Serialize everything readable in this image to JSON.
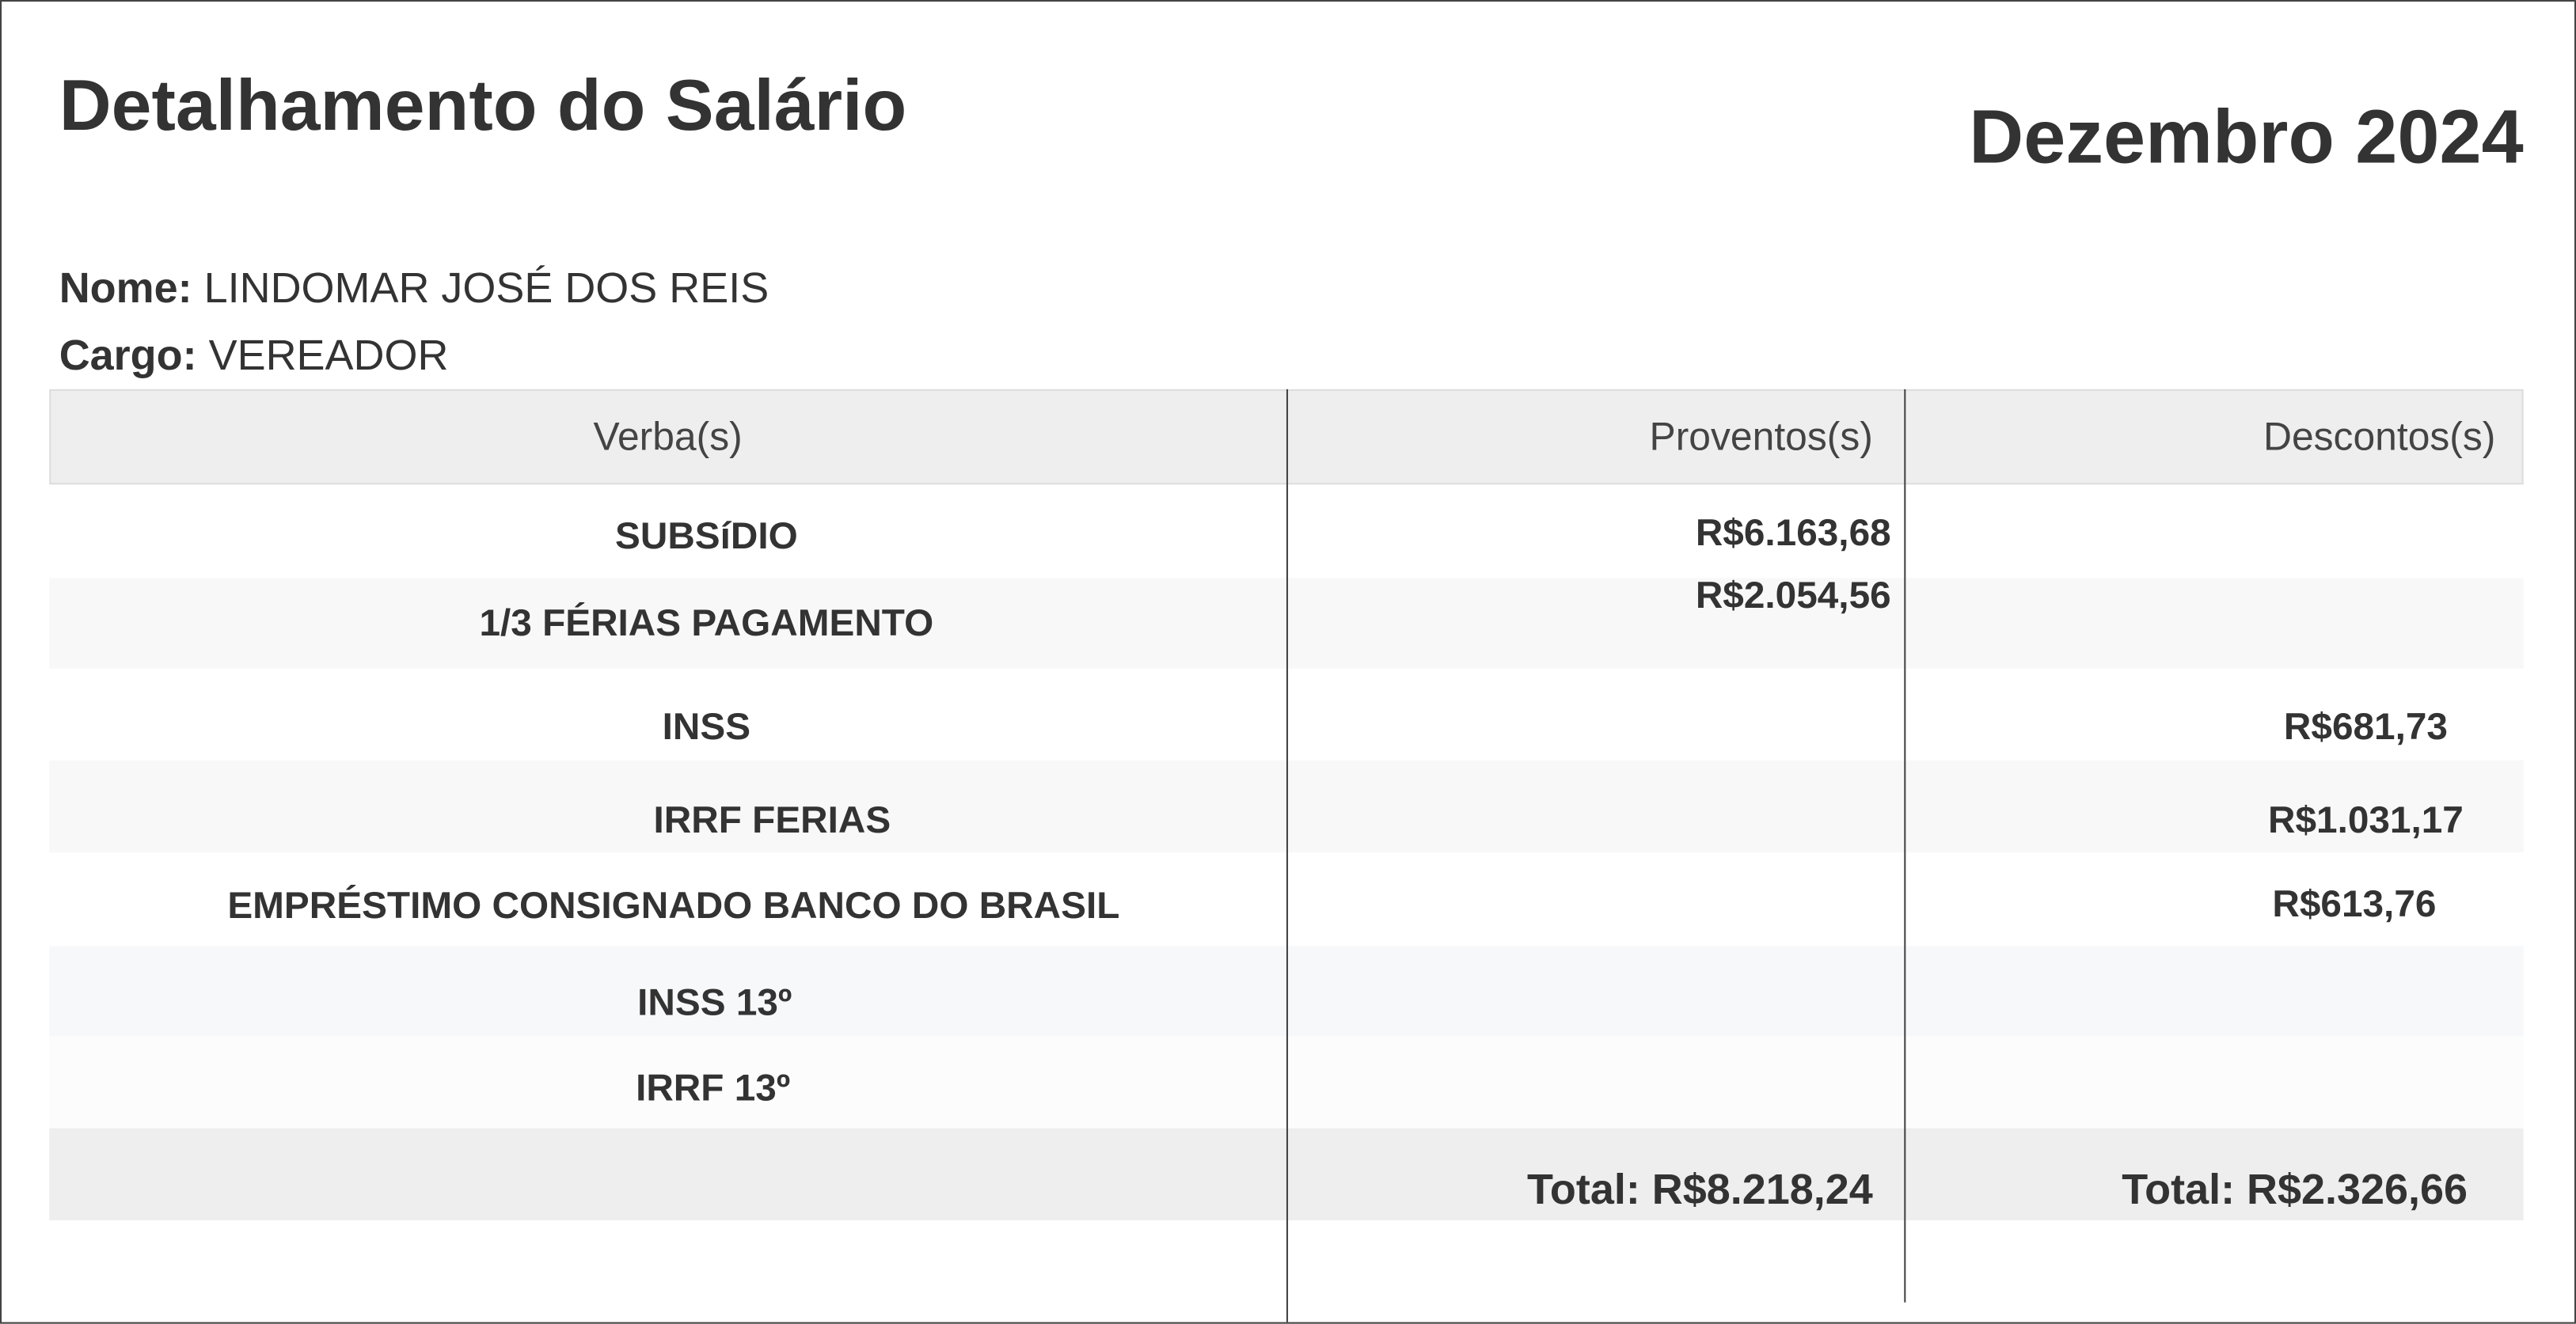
{
  "header": {
    "title": "Detalhamento do Salário",
    "period": "Dezembro 2024"
  },
  "employee": {
    "name_label": "Nome:",
    "name": "LINDOMAR JOSÉ DOS REIS",
    "role_label": "Cargo:",
    "role": "VEREADOR"
  },
  "table": {
    "columns": [
      "Verba(s)",
      "Proventos(s)",
      "Descontos(s)"
    ],
    "rows": [
      {
        "verba": "SUBSíDIO",
        "provento": "R$6.163,68",
        "desconto": ""
      },
      {
        "verba": "1/3 FÉRIAS PAGAMENTO",
        "provento": "R$2.054,56",
        "desconto": ""
      },
      {
        "verba": "INSS",
        "provento": "",
        "desconto": "R$681,73"
      },
      {
        "verba": "IRRF FERIAS",
        "provento": "",
        "desconto": "R$1.031,17"
      },
      {
        "verba": "EMPRÉSTIMO CONSIGNADO BANCO DO BRASIL",
        "provento": "",
        "desconto": "R$613,76"
      },
      {
        "verba": "INSS 13º",
        "provento": "",
        "desconto": ""
      },
      {
        "verba": "IRRF 13º",
        "provento": "",
        "desconto": ""
      }
    ],
    "total_proventos": "Total: R$8.218,24",
    "total_descontos": "Total: R$2.326,66"
  }
}
